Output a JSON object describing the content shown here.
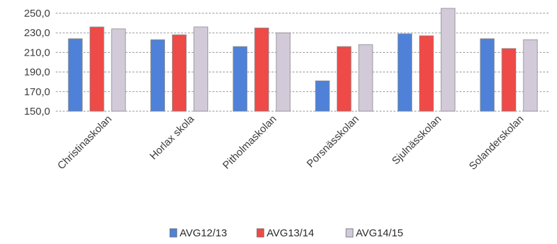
{
  "chart_data": {
    "type": "bar",
    "title": "",
    "xlabel": "",
    "ylabel": "",
    "categories": [
      "Christinaskolan",
      "Horlax skola",
      "Pitholmaskolan",
      "Porsnässkolan",
      "Sjulnässkolan",
      "Solanderskolan"
    ],
    "series": [
      {
        "name": "AVG12/13",
        "color": "#4f81d8",
        "values": [
          224,
          223,
          216,
          181,
          229,
          224
        ]
      },
      {
        "name": "AVG13/14",
        "color": "#ee4a47",
        "values": [
          236,
          228,
          235,
          216,
          227,
          214
        ]
      },
      {
        "name": "AVG14/15",
        "color": "#d2cad8",
        "values": [
          234,
          236,
          230,
          218,
          255,
          223
        ]
      }
    ],
    "ylim": [
      150,
      255
    ],
    "yticks": [
      "150,0",
      "170,0",
      "190,0",
      "210,0",
      "230,0",
      "250,0"
    ],
    "ytick_values": [
      150,
      170,
      190,
      210,
      230,
      250
    ],
    "grid": true,
    "legend_position": "bottom"
  }
}
